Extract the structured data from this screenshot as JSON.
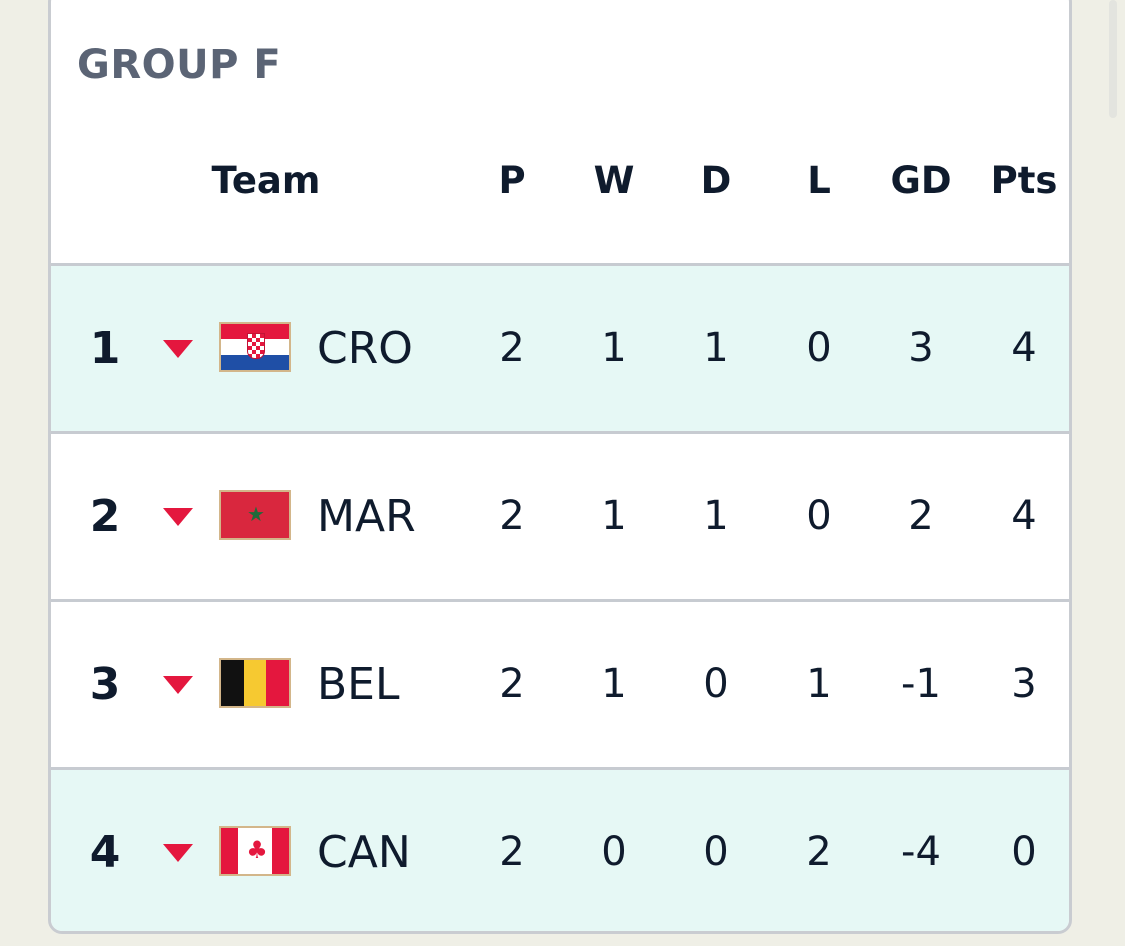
{
  "group": {
    "title": "GROUP F"
  },
  "headers": {
    "team": "Team",
    "p": "P",
    "w": "W",
    "d": "D",
    "l": "L",
    "gd": "GD",
    "pts": "Pts"
  },
  "rows": [
    {
      "rank": "1",
      "code": "CRO",
      "flag": "croatia-flag-icon",
      "p": "2",
      "w": "1",
      "d": "1",
      "l": "0",
      "gd": "3",
      "pts": "4"
    },
    {
      "rank": "2",
      "code": "MAR",
      "flag": "morocco-flag-icon",
      "p": "2",
      "w": "1",
      "d": "1",
      "l": "0",
      "gd": "2",
      "pts": "4"
    },
    {
      "rank": "3",
      "code": "BEL",
      "flag": "belgium-flag-icon",
      "p": "2",
      "w": "1",
      "d": "0",
      "l": "1",
      "gd": "-1",
      "pts": "3"
    },
    {
      "rank": "4",
      "code": "CAN",
      "flag": "canada-flag-icon",
      "p": "2",
      "w": "0",
      "d": "0",
      "l": "2",
      "gd": "-4",
      "pts": "0"
    }
  ],
  "colors": {
    "qualified_highlight": "#e6f8f5",
    "trend_down": "#e4173e",
    "title": "#5b6475",
    "text": "#0f1b2d"
  },
  "icons": {
    "trend": "triangle-down-icon"
  }
}
